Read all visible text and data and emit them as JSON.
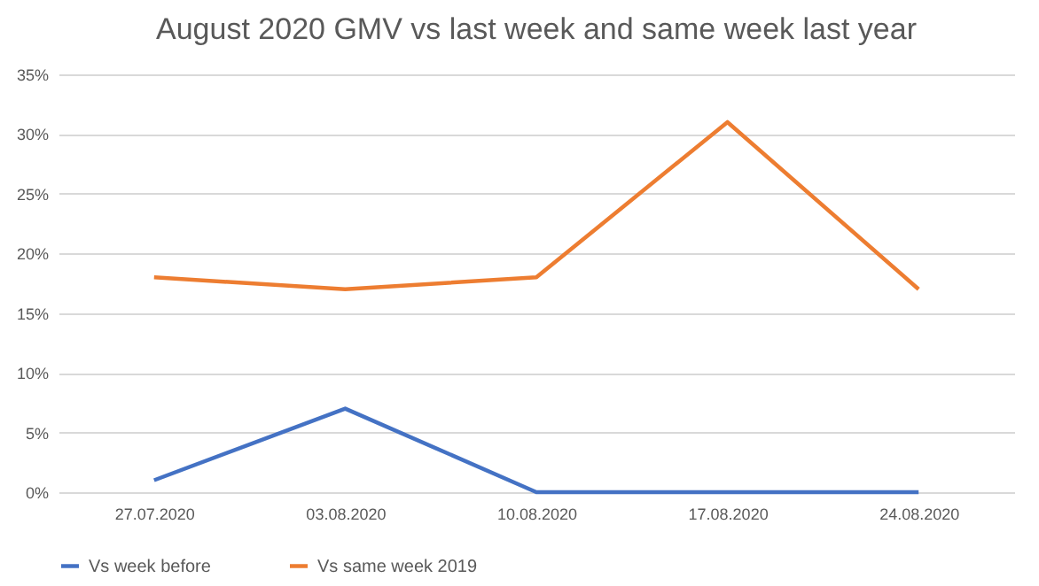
{
  "chart_data": {
    "type": "line",
    "title": "August  2020 GMV vs last week and same week last year",
    "categories": [
      "27.07.2020",
      "03.08.2020",
      "10.08.2020",
      "17.08.2020",
      "24.08.2020"
    ],
    "series": [
      {
        "name": "Vs week before",
        "color": "#4472c4",
        "values": [
          1,
          7,
          0,
          0,
          0
        ]
      },
      {
        "name": "Vs same week 2019",
        "color": "#ed7d31",
        "values": [
          18,
          17,
          18,
          31,
          17
        ]
      }
    ],
    "ylim": [
      0,
      35
    ],
    "yticks": [
      {
        "value": 0,
        "label": "0%"
      },
      {
        "value": 5,
        "label": "5%"
      },
      {
        "value": 10,
        "label": "10%"
      },
      {
        "value": 15,
        "label": "15%"
      },
      {
        "value": 20,
        "label": "20%"
      },
      {
        "value": 25,
        "label": "25%"
      },
      {
        "value": 30,
        "label": "30%"
      },
      {
        "value": 35,
        "label": "35%"
      }
    ],
    "grid": "y",
    "legend": "bottom",
    "marker": "none",
    "line_style": "solid"
  }
}
